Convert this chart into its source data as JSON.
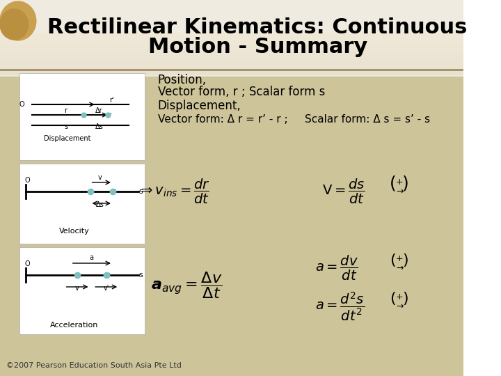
{
  "title_line1": "Rectilinear Kinematics: Continuous",
  "title_line2": "Motion - Summary",
  "bg_top": "#f5f0e0",
  "bg_bottom": "#d4c9a0",
  "header_bg": "#f0ebe0",
  "content_bg": "#cfc49c",
  "title_color": "#000000",
  "text_color": "#000000",
  "copyright": "©2007 Pearson Education South Asia Pte Ltd",
  "position_text1": "Position,",
  "position_text2": "Vector form, r ; Scalar form s",
  "displacement_text1": "Displacement,",
  "displacement_text2": "Vector form: Δ r = r’ - r ;     Scalar form: Δ s = s’ - s"
}
